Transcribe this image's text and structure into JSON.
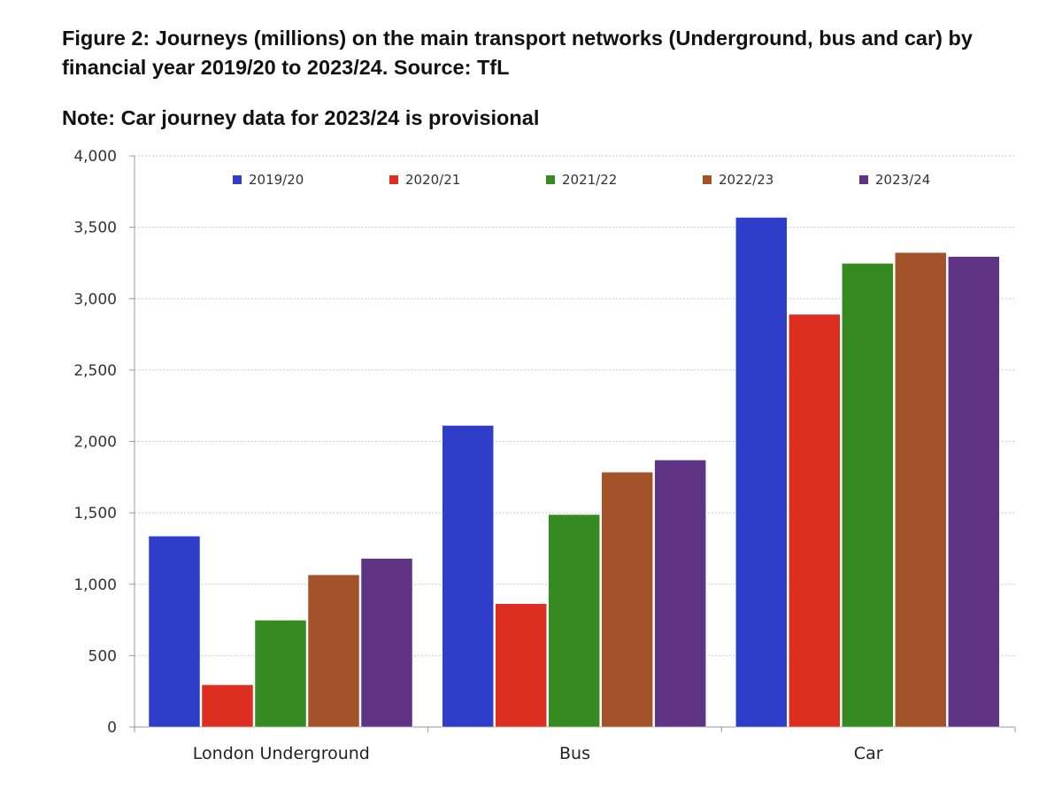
{
  "title": "Figure 2: Journeys (millions) on the main transport networks (Underground, bus and car) by financial year 2019/20 to 2023/24. Source: TfL",
  "note": "Note: Car journey data for 2023/24 is provisional",
  "chart_data": {
    "type": "bar",
    "categories": [
      "London Underground",
      "Bus",
      "Car"
    ],
    "series": [
      {
        "name": "2019/20",
        "color": "#2e3ec9",
        "values": [
          1337,
          2112,
          3569
        ]
      },
      {
        "name": "2020/21",
        "color": "#dc2f22",
        "values": [
          296,
          864,
          2890
        ]
      },
      {
        "name": "2021/22",
        "color": "#368a22",
        "values": [
          748,
          1488,
          3247
        ]
      },
      {
        "name": "2022/23",
        "color": "#a3532a",
        "values": [
          1066,
          1785,
          3323
        ]
      },
      {
        "name": "2023/24",
        "color": "#603484",
        "values": [
          1181,
          1870,
          3295
        ]
      }
    ],
    "ylim": [
      0,
      4000
    ],
    "yticks": [
      0,
      500,
      1000,
      1500,
      2000,
      2500,
      3000,
      3500,
      4000
    ],
    "ytick_labels": [
      "0",
      "500",
      "1,000",
      "1,500",
      "2,000",
      "2,500",
      "3,000",
      "3,500",
      "4,000"
    ],
    "grid": true,
    "legend_position": "top"
  }
}
